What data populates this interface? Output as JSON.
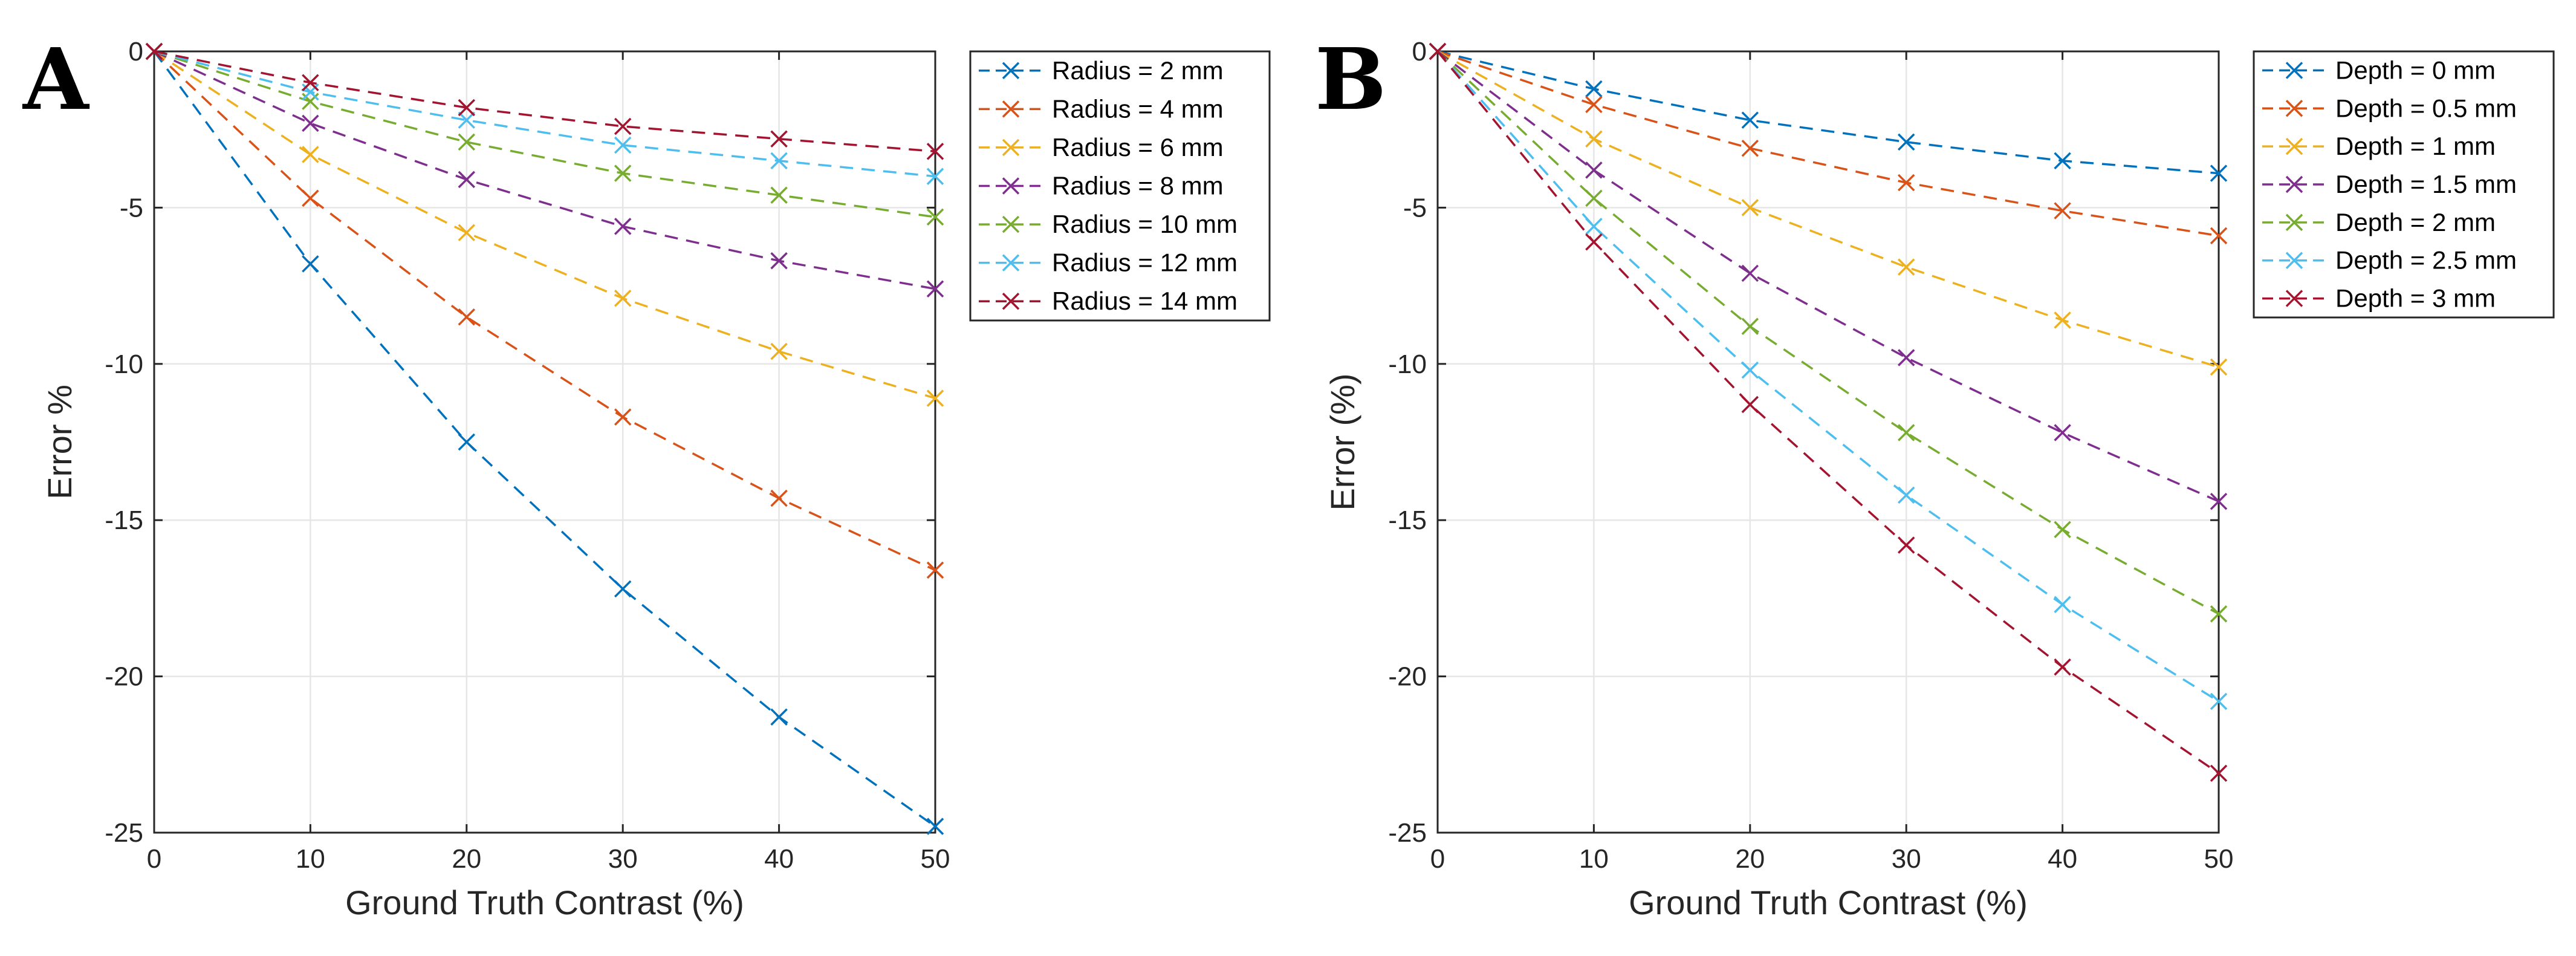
{
  "chart_data": [
    {
      "type": "line",
      "panel_label": "A",
      "title": "",
      "xlabel": "Ground Truth Contrast (%)",
      "ylabel": "Error %",
      "xlim": [
        0,
        50
      ],
      "ylim": [
        -25,
        0
      ],
      "xticks": [
        0,
        10,
        20,
        30,
        40,
        50
      ],
      "yticks": [
        0,
        -5,
        -10,
        -15,
        -20,
        -25
      ],
      "grid": true,
      "legend_position": "outside-right-top",
      "x": [
        0,
        10,
        20,
        30,
        40,
        50
      ],
      "series": [
        {
          "name": "Radius = 2 mm",
          "color": "#0072BD",
          "values": [
            0,
            -6.8,
            -12.5,
            -17.2,
            -21.3,
            -24.8
          ]
        },
        {
          "name": "Radius = 4 mm",
          "color": "#D95319",
          "values": [
            0,
            -4.7,
            -8.5,
            -11.7,
            -14.3,
            -16.6
          ]
        },
        {
          "name": "Radius = 6 mm",
          "color": "#EDB120",
          "values": [
            0,
            -3.3,
            -5.8,
            -7.9,
            -9.6,
            -11.1
          ]
        },
        {
          "name": "Radius = 8 mm",
          "color": "#7E2F8E",
          "values": [
            0,
            -2.3,
            -4.1,
            -5.6,
            -6.7,
            -7.6
          ]
        },
        {
          "name": "Radius = 10 mm",
          "color": "#77AC30",
          "values": [
            0,
            -1.6,
            -2.9,
            -3.9,
            -4.6,
            -5.3
          ]
        },
        {
          "name": "Radius = 12 mm",
          "color": "#4DBEEE",
          "values": [
            0,
            -1.3,
            -2.2,
            -3.0,
            -3.5,
            -4.0
          ]
        },
        {
          "name": "Radius = 14 mm",
          "color": "#A2142F",
          "values": [
            0,
            -1.0,
            -1.8,
            -2.4,
            -2.8,
            -3.2
          ]
        }
      ]
    },
    {
      "type": "line",
      "panel_label": "B",
      "title": "",
      "xlabel": "Ground Truth Contrast (%)",
      "ylabel": "Error (%)",
      "xlim": [
        0,
        50
      ],
      "ylim": [
        -25,
        0
      ],
      "xticks": [
        0,
        10,
        20,
        30,
        40,
        50
      ],
      "yticks": [
        0,
        -5,
        -10,
        -15,
        -20,
        -25
      ],
      "grid": true,
      "legend_position": "outside-right-top",
      "x": [
        0,
        10,
        20,
        30,
        40,
        50
      ],
      "series": [
        {
          "name": "Depth = 0 mm",
          "color": "#0072BD",
          "values": [
            0,
            -1.2,
            -2.2,
            -2.9,
            -3.5,
            -3.9
          ]
        },
        {
          "name": "Depth = 0.5 mm",
          "color": "#D95319",
          "values": [
            0,
            -1.7,
            -3.1,
            -4.2,
            -5.1,
            -5.9
          ]
        },
        {
          "name": "Depth = 1 mm",
          "color": "#EDB120",
          "values": [
            0,
            -2.8,
            -5.0,
            -6.9,
            -8.6,
            -10.1
          ]
        },
        {
          "name": "Depth = 1.5 mm",
          "color": "#7E2F8E",
          "values": [
            0,
            -3.8,
            -7.1,
            -9.8,
            -12.2,
            -14.4
          ]
        },
        {
          "name": "Depth = 2 mm",
          "color": "#77AC30",
          "values": [
            0,
            -4.7,
            -8.8,
            -12.2,
            -15.3,
            -18.0
          ]
        },
        {
          "name": "Depth = 2.5 mm",
          "color": "#4DBEEE",
          "values": [
            0,
            -5.6,
            -10.2,
            -14.2,
            -17.7,
            -20.8
          ]
        },
        {
          "name": "Depth = 3 mm",
          "color": "#A2142F",
          "values": [
            0,
            -6.1,
            -11.3,
            -15.8,
            -19.7,
            -23.1
          ]
        }
      ]
    }
  ]
}
